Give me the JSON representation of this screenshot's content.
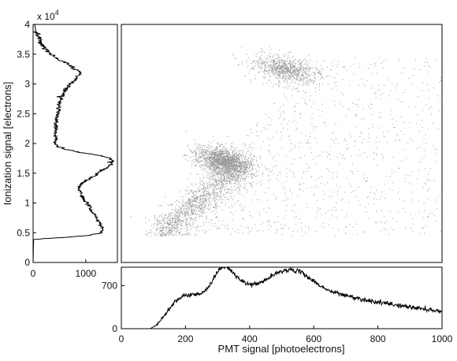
{
  "chart_data": [
    {
      "type": "line",
      "panel": "left marginal histogram (ionization projection)",
      "xlim": [
        0,
        1600
      ],
      "ylim": [
        0,
        40000
      ],
      "xticks": [
        "0",
        "1000"
      ],
      "xtick_values": [
        0,
        1000
      ],
      "yticks": [
        "0",
        "0.5",
        "1",
        "1.5",
        "2",
        "2.5",
        "3",
        "3.5",
        "4"
      ],
      "ytick_values": [
        0,
        5000,
        10000,
        15000,
        20000,
        25000,
        30000,
        35000,
        40000
      ],
      "y_exponent_label": "x 10",
      "y_exponent_power": "4",
      "ylabel": "Ionization signal [electrons]",
      "series": [
        {
          "profile": [
            [
              0,
              0
            ],
            [
              3900,
              10
            ],
            [
              4200,
              600
            ],
            [
              4600,
              1100
            ],
            [
              5000,
              1280
            ],
            [
              5500,
              1330
            ],
            [
              6000,
              1300
            ],
            [
              7000,
              1240
            ],
            [
              8000,
              1160
            ],
            [
              9000,
              1100
            ],
            [
              10000,
              1020
            ],
            [
              11000,
              940
            ],
            [
              12000,
              900
            ],
            [
              12800,
              860
            ],
            [
              13500,
              960
            ],
            [
              14500,
              1150
            ],
            [
              15500,
              1320
            ],
            [
              16500,
              1480
            ],
            [
              17000,
              1520
            ],
            [
              17500,
              1460
            ],
            [
              18000,
              1250
            ],
            [
              18500,
              900
            ],
            [
              19000,
              620
            ],
            [
              19500,
              470
            ],
            [
              20000,
              420
            ],
            [
              21000,
              420
            ],
            [
              22000,
              430
            ],
            [
              23000,
              440
            ],
            [
              24000,
              450
            ],
            [
              25000,
              470
            ],
            [
              26000,
              480
            ],
            [
              27000,
              510
            ],
            [
              28000,
              560
            ],
            [
              29000,
              620
            ],
            [
              30000,
              700
            ],
            [
              31000,
              840
            ],
            [
              32000,
              880
            ],
            [
              33000,
              730
            ],
            [
              34000,
              500
            ],
            [
              35000,
              330
            ],
            [
              36000,
              220
            ],
            [
              37000,
              140
            ],
            [
              38000,
              90
            ],
            [
              39000,
              50
            ],
            [
              40000,
              30
            ]
          ]
        }
      ]
    },
    {
      "type": "scatter",
      "panel": "central 2D density scatter",
      "xlim": [
        0,
        1000
      ],
      "ylim": [
        0,
        40000
      ],
      "threshold_y": 4500,
      "color": "#1a1a1a",
      "clusters": [
        {
          "x": 320,
          "y": 17000,
          "sx": 40,
          "sy": 1500,
          "w": 0.35
        },
        {
          "x": 510,
          "y": 32500,
          "sx": 45,
          "sy": 1500,
          "w": 0.18
        },
        {
          "x": 220,
          "y": 8000,
          "sx": 80,
          "sy": 3000,
          "w": 0.25
        },
        {
          "x": 500,
          "y": 20000,
          "sx": 200,
          "sy": 9000,
          "w": 0.22
        }
      ]
    },
    {
      "type": "line",
      "panel": "bottom marginal histogram (PMT projection)",
      "xlim": [
        0,
        1000
      ],
      "ylim": [
        0,
        1000
      ],
      "xticks": [
        "0",
        "200",
        "400",
        "600",
        "800",
        "1000"
      ],
      "xtick_values": [
        0,
        200,
        400,
        600,
        800,
        1000
      ],
      "yticks": [
        "0",
        "700"
      ],
      "ytick_values": [
        0,
        700
      ],
      "xlabel": "PMT signal [photoelectrons]",
      "series": [
        {
          "profile": [
            [
              0,
              0
            ],
            [
              90,
              0
            ],
            [
              110,
              60
            ],
            [
              130,
              180
            ],
            [
              150,
              340
            ],
            [
              170,
              460
            ],
            [
              190,
              520
            ],
            [
              210,
              550
            ],
            [
              230,
              560
            ],
            [
              250,
              580
            ],
            [
              270,
              650
            ],
            [
              290,
              850
            ],
            [
              310,
              1000
            ],
            [
              330,
              1010
            ],
            [
              350,
              900
            ],
            [
              370,
              790
            ],
            [
              390,
              730
            ],
            [
              410,
              720
            ],
            [
              430,
              740
            ],
            [
              450,
              790
            ],
            [
              470,
              860
            ],
            [
              500,
              940
            ],
            [
              530,
              960
            ],
            [
              560,
              920
            ],
            [
              590,
              810
            ],
            [
              620,
              700
            ],
            [
              650,
              610
            ],
            [
              700,
              540
            ],
            [
              750,
              480
            ],
            [
              800,
              430
            ],
            [
              850,
              390
            ],
            [
              900,
              350
            ],
            [
              950,
              320
            ],
            [
              1000,
              280
            ]
          ]
        }
      ]
    }
  ]
}
